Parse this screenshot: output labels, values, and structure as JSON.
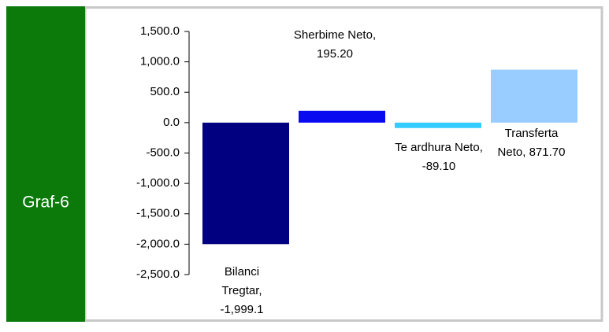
{
  "chart_data": {
    "type": "bar",
    "side_title": "Graf-6",
    "values": [
      -1999.1,
      195.2,
      -89.1,
      871.7
    ],
    "value_labels": [
      "Bilanci Tregtar, -1,999.1",
      "Sherbime Neto, 195.20",
      "Te ardhura Neto, -89.10",
      "Transferta Neto, 871.70"
    ],
    "colors": [
      "#000080",
      "#0a0af0",
      "#33ccff",
      "#99ccff"
    ],
    "ylim": [
      -2500,
      1500
    ],
    "yticks": [
      {
        "value": 1500,
        "label": "1,500.0"
      },
      {
        "value": 1000,
        "label": "1,000.0"
      },
      {
        "value": 500,
        "label": "500.0"
      },
      {
        "value": 0,
        "label": "0.0"
      },
      {
        "value": -500,
        "label": "-500.0"
      },
      {
        "value": -1000,
        "label": "-1,000.0"
      },
      {
        "value": -1500,
        "label": "-1,500.0"
      },
      {
        "value": -2000,
        "label": "-2,000.0"
      },
      {
        "value": -2500,
        "label": "-2,500.0"
      }
    ]
  }
}
